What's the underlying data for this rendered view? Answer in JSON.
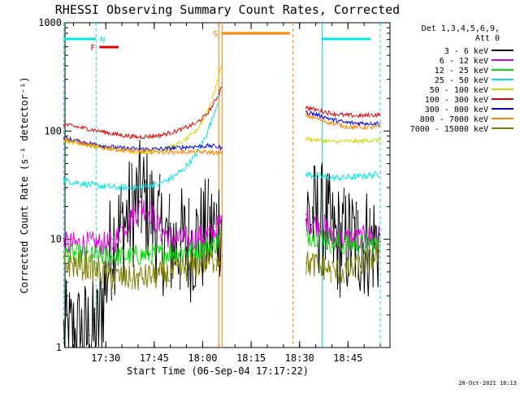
{
  "chart_data": {
    "type": "line",
    "title": "RHESSI Observing Summary Count Rates, Corrected",
    "xlabel": "Start Time (06-Sep-04 17:17:22)",
    "ylabel": "Corrected Count Rate (s⁻¹ detector⁻¹)",
    "yscale": "log",
    "xlim": [
      "17:17:22",
      "18:58:00"
    ],
    "ylim": [
      1,
      1000
    ],
    "x_ticks": [
      "17:30",
      "17:45",
      "18:00",
      "18:15",
      "18:30",
      "18:45"
    ],
    "y_ticks": [
      "1",
      "10",
      "100",
      "1000"
    ],
    "legend_position": "right",
    "legend_header": [
      "Det 1,3,4,5,6,9,",
      "Att 0"
    ],
    "footer_text": "20-Oct-2021 18:13",
    "series": [
      {
        "name": "3 - 6 keV",
        "color": "#000000",
        "x": [
          "17:17",
          "17:25",
          "17:27",
          "17:32",
          "17:35",
          "17:38",
          "17:41",
          "17:44",
          "17:47",
          "17:50",
          "17:53",
          "17:56",
          "17:59",
          "18:02",
          "18:04",
          "18:06",
          "18:32",
          "18:34",
          "18:38",
          "18:40",
          "18:44",
          "18:48",
          "18:52",
          "18:55"
        ],
        "y": [
          1.2,
          1.3,
          1.2,
          10,
          13,
          18,
          25,
          18,
          11,
          9,
          9,
          9,
          10,
          11,
          13,
          16,
          17,
          16,
          15,
          10,
          9.5,
          9.5,
          9.5,
          9.5
        ]
      },
      {
        "name": "6 - 12 keV",
        "color": "#e000e0",
        "x": [
          "17:17",
          "17:25",
          "17:32",
          "17:35",
          "17:38",
          "17:41",
          "17:44",
          "17:47",
          "17:50",
          "17:53",
          "17:56",
          "17:59",
          "18:02",
          "18:04",
          "18:06",
          "18:32",
          "18:34",
          "18:38",
          "18:40",
          "18:44",
          "18:48",
          "18:52",
          "18:55"
        ],
        "y": [
          9,
          9,
          9,
          12,
          16,
          20,
          18,
          12,
          10.5,
          10,
          10,
          10.5,
          11,
          12,
          15,
          15,
          14,
          13,
          10,
          10,
          10,
          10.5,
          10.5
        ]
      },
      {
        "name": "12 - 25 keV",
        "color": "#00e000",
        "x": [
          "17:17",
          "17:25",
          "17:32",
          "17:38",
          "17:44",
          "17:50",
          "17:56",
          "18:00",
          "18:04",
          "18:06",
          "18:32",
          "18:38",
          "18:40",
          "18:44",
          "18:48",
          "18:52",
          "18:55"
        ],
        "y": [
          7.5,
          7,
          7,
          7,
          7.2,
          7.5,
          7.8,
          8.2,
          9,
          11,
          11,
          10.5,
          9,
          9,
          9,
          9,
          9
        ]
      },
      {
        "name": "25 - 50 keV",
        "color": "#00e5e5",
        "x": [
          "17:17",
          "17:22",
          "17:28",
          "17:34",
          "17:40",
          "17:46",
          "17:50",
          "17:54",
          "17:58",
          "18:01",
          "18:03",
          "18:05",
          "18:06",
          "18:32",
          "18:36",
          "18:40",
          "18:44",
          "18:48",
          "18:52",
          "18:55"
        ],
        "y": [
          35,
          33,
          31,
          30,
          30,
          32,
          36,
          44,
          60,
          90,
          130,
          200,
          250,
          40,
          38,
          37,
          37,
          38,
          39,
          40
        ]
      },
      {
        "name": "50 - 100 keV",
        "color": "#d4d400",
        "x": [
          "17:17",
          "17:22",
          "17:28",
          "17:34",
          "17:40",
          "17:46",
          "17:50",
          "17:54",
          "17:58",
          "18:01",
          "18:03",
          "18:05",
          "18:06",
          "18:32",
          "18:36",
          "18:40",
          "18:44",
          "18:48",
          "18:52",
          "18:55"
        ],
        "y": [
          82,
          76,
          71,
          67,
          64,
          65,
          70,
          80,
          100,
          140,
          200,
          320,
          450,
          85,
          82,
          80,
          80,
          80,
          82,
          82
        ]
      },
      {
        "name": "100 - 300 keV",
        "color": "#e00000",
        "x": [
          "17:17",
          "17:22",
          "17:28",
          "17:34",
          "17:40",
          "17:46",
          "17:50",
          "17:54",
          "17:58",
          "18:01",
          "18:03",
          "18:05",
          "18:06",
          "18:32",
          "18:36",
          "18:40",
          "18:44",
          "18:48",
          "18:52",
          "18:55"
        ],
        "y": [
          115,
          108,
          100,
          92,
          88,
          90,
          96,
          105,
          118,
          140,
          170,
          220,
          280,
          165,
          155,
          145,
          140,
          138,
          140,
          142
        ]
      },
      {
        "name": "300 - 800 keV",
        "color": "#0000e0",
        "x": [
          "17:17",
          "17:22",
          "17:28",
          "17:34",
          "17:40",
          "17:46",
          "17:52",
          "17:58",
          "18:02",
          "18:04",
          "18:06",
          "18:32",
          "18:36",
          "18:40",
          "18:44",
          "18:48",
          "18:52",
          "18:55"
        ],
        "y": [
          86,
          80,
          74,
          70,
          68,
          68,
          70,
          72,
          73,
          72,
          70,
          150,
          140,
          128,
          120,
          118,
          118,
          118
        ]
      },
      {
        "name": "800 - 7000 keV",
        "color": "#ff8000",
        "x": [
          "17:17",
          "17:22",
          "17:28",
          "17:34",
          "17:40",
          "17:46",
          "17:52",
          "17:58",
          "18:02",
          "18:04",
          "18:06",
          "18:32",
          "18:36",
          "18:40",
          "18:44",
          "18:48",
          "18:52",
          "18:55"
        ],
        "y": [
          84,
          77,
          71,
          67,
          65,
          64,
          64,
          64,
          64,
          63,
          62,
          140,
          128,
          118,
          110,
          108,
          108,
          110
        ]
      },
      {
        "name": "7000 - 15000 keV",
        "color": "#808000",
        "x": [
          "17:17",
          "17:25",
          "17:32",
          "17:38",
          "17:44",
          "17:50",
          "17:56",
          "18:00",
          "18:04",
          "18:06",
          "18:32",
          "18:38",
          "18:40",
          "18:44",
          "18:48",
          "18:52",
          "18:55"
        ],
        "y": [
          6,
          5.5,
          4.5,
          4.3,
          4.5,
          4.8,
          5.5,
          6,
          6.5,
          7,
          6,
          5.5,
          5,
          5,
          5.5,
          6.5,
          7.5
        ]
      }
    ],
    "state_bars": [
      {
        "label": "N",
        "color": "#00e5e5",
        "segments": [
          [
            "17:17",
            "17:27"
          ],
          [
            "18:37",
            "18:52"
          ]
        ]
      },
      {
        "label": "F",
        "color": "#e00000",
        "segments": [
          [
            "17:28",
            "17:34"
          ]
        ]
      },
      {
        "label": "S",
        "color": "#ff8000",
        "segments": [
          [
            "18:06",
            "18:27"
          ]
        ]
      }
    ],
    "vertical_markers": [
      {
        "time": "17:17",
        "color": "#00e5e5",
        "style": "dashed"
      },
      {
        "time": "17:27",
        "color": "#00e5e5",
        "style": "dashed"
      },
      {
        "time": "18:05",
        "color": "#ff8000",
        "style": "solid"
      },
      {
        "time": "18:06",
        "color": "#ff8000",
        "style": "solid"
      },
      {
        "time": "18:28",
        "color": "#ff8000",
        "style": "dashed"
      },
      {
        "time": "18:37",
        "color": "#00e5e5",
        "style": "solid"
      },
      {
        "time": "18:55",
        "color": "#00e5e5",
        "style": "dashed"
      }
    ]
  }
}
